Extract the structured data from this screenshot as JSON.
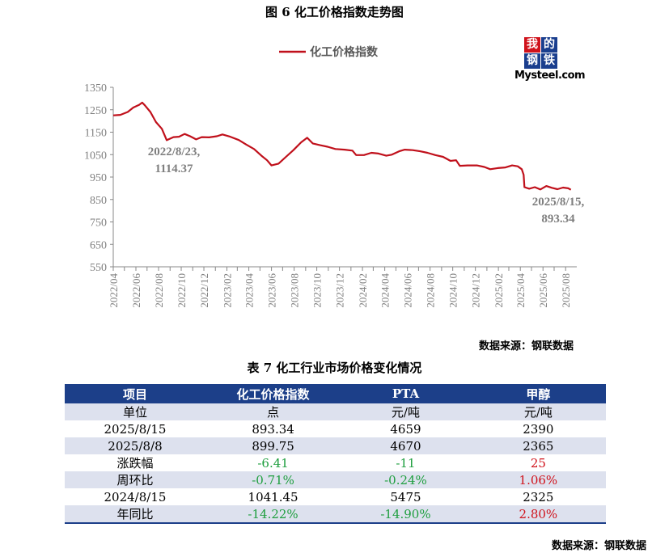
{
  "figure_title": "图 6 化工价格指数走势图",
  "logo": {
    "c1": "我",
    "c2": "的",
    "c3": "钢",
    "c4": "铁",
    "brand": "Mysteel.com"
  },
  "chart_source": "数据来源：钢联数据",
  "chart_data": {
    "type": "line",
    "series": [
      {
        "name": "化工价格指数",
        "color": "#c0101b",
        "points": [
          [
            "2022-04-01",
            1225
          ],
          [
            "2022-04-20",
            1227
          ],
          [
            "2022-05-10",
            1240
          ],
          [
            "2022-05-25",
            1260
          ],
          [
            "2022-06-10",
            1272
          ],
          [
            "2022-06-18",
            1282
          ],
          [
            "2022-06-25",
            1270
          ],
          [
            "2022-07-10",
            1240
          ],
          [
            "2022-07-25",
            1195
          ],
          [
            "2022-08-10",
            1165
          ],
          [
            "2022-08-23",
            1114.37
          ],
          [
            "2022-09-10",
            1128
          ],
          [
            "2022-09-25",
            1130
          ],
          [
            "2022-10-10",
            1142
          ],
          [
            "2022-10-25",
            1132
          ],
          [
            "2022-11-10",
            1118
          ],
          [
            "2022-11-25",
            1128
          ],
          [
            "2022-12-15",
            1127
          ],
          [
            "2023-01-05",
            1132
          ],
          [
            "2023-01-20",
            1140
          ],
          [
            "2023-02-10",
            1130
          ],
          [
            "2023-03-05",
            1115
          ],
          [
            "2023-03-25",
            1095
          ],
          [
            "2023-04-15",
            1075
          ],
          [
            "2023-05-05",
            1045
          ],
          [
            "2023-05-20",
            1025
          ],
          [
            "2023-06-01",
            1002
          ],
          [
            "2023-06-20",
            1010
          ],
          [
            "2023-07-10",
            1040
          ],
          [
            "2023-07-30",
            1070
          ],
          [
            "2023-08-20",
            1105
          ],
          [
            "2023-09-05",
            1125
          ],
          [
            "2023-09-20",
            1100
          ],
          [
            "2023-10-10",
            1092
          ],
          [
            "2023-10-30",
            1085
          ],
          [
            "2023-11-20",
            1075
          ],
          [
            "2023-12-15",
            1072
          ],
          [
            "2024-01-05",
            1068
          ],
          [
            "2024-01-15",
            1048
          ],
          [
            "2024-02-05",
            1048
          ],
          [
            "2024-02-25",
            1058
          ],
          [
            "2024-03-15",
            1055
          ],
          [
            "2024-04-05",
            1045
          ],
          [
            "2024-04-20",
            1050
          ],
          [
            "2024-05-10",
            1065
          ],
          [
            "2024-05-25",
            1072
          ],
          [
            "2024-06-15",
            1070
          ],
          [
            "2024-07-05",
            1065
          ],
          [
            "2024-07-25",
            1058
          ],
          [
            "2024-08-15",
            1048
          ],
          [
            "2024-09-05",
            1040
          ],
          [
            "2024-09-25",
            1022
          ],
          [
            "2024-10-10",
            1025
          ],
          [
            "2024-10-20",
            1000
          ],
          [
            "2024-11-10",
            1002
          ],
          [
            "2024-12-05",
            1002
          ],
          [
            "2024-12-25",
            995
          ],
          [
            "2025-01-10",
            985
          ],
          [
            "2025-01-30",
            990
          ],
          [
            "2025-02-20",
            993
          ],
          [
            "2025-03-10",
            1002
          ],
          [
            "2025-03-25",
            998
          ],
          [
            "2025-04-05",
            985
          ],
          [
            "2025-04-10",
            960
          ],
          [
            "2025-04-12",
            905
          ],
          [
            "2025-04-25",
            898
          ],
          [
            "2025-05-10",
            905
          ],
          [
            "2025-05-25",
            895
          ],
          [
            "2025-06-10",
            910
          ],
          [
            "2025-06-25",
            902
          ],
          [
            "2025-07-10",
            896
          ],
          [
            "2025-07-25",
            903
          ],
          [
            "2025-08-08",
            899.75
          ],
          [
            "2025-08-15",
            893.34
          ]
        ]
      }
    ],
    "ylim": [
      550,
      1350
    ],
    "yticks": [
      550,
      650,
      750,
      850,
      950,
      1050,
      1150,
      1250,
      1350
    ],
    "x_range": [
      "2022-04-01",
      "2025-08-31"
    ],
    "xticks": [
      "2022/04",
      "2022/06",
      "2022/08",
      "2022/10",
      "2022/12",
      "2023/02",
      "2023/04",
      "2023/06",
      "2023/08",
      "2023/10",
      "2023/12",
      "2024/02",
      "2024/04",
      "2024/06",
      "2024/08",
      "2024/10",
      "2024/12",
      "2025/02",
      "2025/04",
      "2025/06",
      "2025/08"
    ],
    "legend_position": "top",
    "grid": false,
    "annotations": [
      {
        "line1": "2022/8/23,",
        "line2": "1114.37"
      },
      {
        "line1": "2025/8/15,",
        "line2": "893.34"
      }
    ]
  },
  "table": {
    "title": "表 7 化工行业市场价格变化情况",
    "headers": [
      "项目",
      "化工价格指数",
      "PTA",
      "甲醇"
    ],
    "rows": [
      {
        "cells": [
          "单位",
          "点",
          "元/吨",
          "元/吨"
        ],
        "colors": [
          "",
          "",
          "",
          ""
        ]
      },
      {
        "cells": [
          "2025/8/15",
          "893.34",
          "4659",
          "2390"
        ],
        "colors": [
          "",
          "",
          "",
          ""
        ]
      },
      {
        "cells": [
          "2025/8/8",
          "899.75",
          "4670",
          "2365"
        ],
        "colors": [
          "",
          "",
          "",
          ""
        ]
      },
      {
        "cells": [
          "涨跌幅",
          "-6.41",
          "-11",
          "25"
        ],
        "colors": [
          "",
          "neg",
          "neg",
          "pos"
        ]
      },
      {
        "cells": [
          "周环比",
          "-0.71%",
          "-0.24%",
          "1.06%"
        ],
        "colors": [
          "",
          "neg",
          "neg",
          "pos"
        ]
      },
      {
        "cells": [
          "2024/8/15",
          "1041.45",
          "5475",
          "2325"
        ],
        "colors": [
          "",
          "",
          "",
          ""
        ]
      },
      {
        "cells": [
          "年同比",
          "-14.22%",
          "-14.90%",
          "2.80%"
        ],
        "colors": [
          "",
          "neg",
          "neg",
          "pos"
        ]
      }
    ],
    "source": "数据来源：钢联数据"
  }
}
